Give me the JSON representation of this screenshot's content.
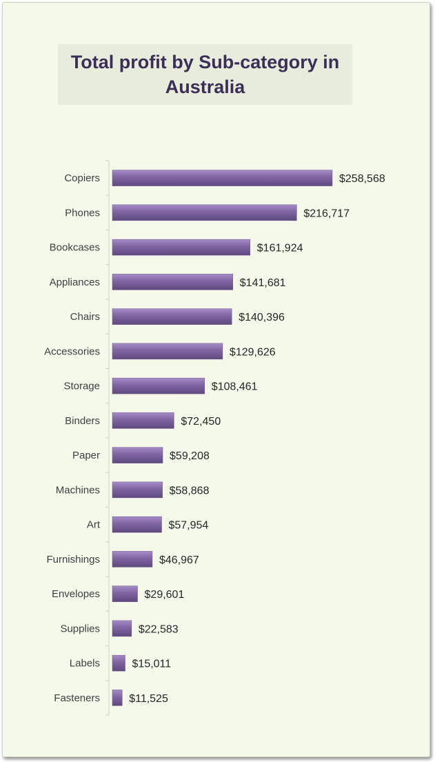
{
  "chart_data": {
    "type": "bar",
    "orientation": "horizontal",
    "title": "Total profit by Sub-category in Australia",
    "xlabel": "",
    "ylabel": "",
    "categories": [
      "Copiers",
      "Phones",
      "Bookcases",
      "Appliances",
      "Chairs",
      "Accessories",
      "Storage",
      "Binders",
      "Paper",
      "Machines",
      "Art",
      "Furnishings",
      "Envelopes",
      "Supplies",
      "Labels",
      "Fasteners"
    ],
    "values": [
      258568,
      216717,
      161924,
      141681,
      140396,
      129626,
      108461,
      72450,
      59208,
      58868,
      57954,
      46967,
      29601,
      22583,
      15011,
      11525
    ],
    "data_labels": [
      "$258,568",
      "$216,717",
      "$161,924",
      "$141,681",
      "$140,396",
      "$129,626",
      "$108,461",
      "$72,450",
      "$59,208",
      "$58,868",
      "$57,954",
      "$46,967",
      "$29,601",
      "$22,583",
      "$15,011",
      "$11,525"
    ],
    "xlim": [
      0,
      260000
    ],
    "grid": false,
    "legend": "none",
    "colors": {
      "bar": "#8064a2",
      "bar_light": "#9b80c1",
      "bar_dark": "#5e4a7e",
      "background": "#f4f9e9",
      "title_box": "#e7ecdc",
      "title_text": "#3b2f58"
    }
  }
}
